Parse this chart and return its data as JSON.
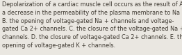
{
  "text": "Depolarization of a cardiac muscle cell occurs as the result of A.\na decrease in the permeability of the plasma membrane to Na +.\nB. the opening of voltage-gated Na + channels and voltage-\ngated Ca 2+ channels. C. the closure of the voltage-gated Na +\nchannels. D. the closure of voltage-gated Ca 2+ channels. E. the\nopening of voltage-gated K + channels.",
  "background_color": "#eae7e1",
  "text_color": "#3d3830",
  "font_size": 5.9,
  "fig_width": 2.62,
  "fig_height": 0.79,
  "dpi": 100
}
